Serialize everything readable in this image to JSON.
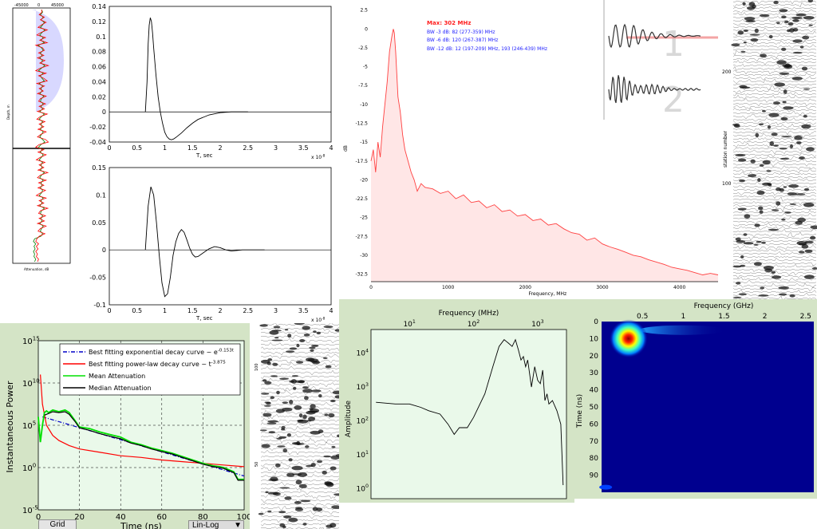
{
  "chart_data": [
    {
      "type": "line",
      "ticks": {
        "x": [
          "-45000",
          "0",
          "45000"
        ]
      },
      "xlabel": "Attenuation, dB",
      "ylabel": "Depth, m",
      "ylim": [
        0,
        100
      ],
      "series": [
        {
          "color": "#008000",
          "values": [
            50,
            52,
            48,
            53,
            49,
            55,
            52,
            48,
            56,
            51,
            47,
            53,
            49,
            55,
            44,
            50,
            53,
            48,
            51,
            47,
            52,
            49,
            56,
            50,
            45,
            53,
            48,
            51,
            55,
            46,
            52,
            49,
            51,
            47,
            54,
            50,
            48,
            53,
            49,
            52,
            47,
            55,
            50,
            46,
            52,
            49,
            51,
            48,
            53,
            50,
            47,
            52,
            56,
            49,
            45,
            51,
            48,
            53,
            50,
            46,
            52,
            49,
            51,
            48,
            55,
            50,
            47,
            53,
            49,
            51,
            48,
            52,
            50,
            46,
            53,
            49,
            51,
            47,
            55,
            50,
            48,
            52,
            49,
            51,
            47,
            53,
            50,
            48,
            52,
            49,
            38,
            36,
            40,
            37,
            39,
            36,
            38,
            37,
            40,
            38
          ]
        },
        {
          "color": "#ff0000",
          "values": [
            50,
            51,
            46,
            55,
            48,
            58,
            50,
            44,
            60,
            49,
            42,
            57,
            47,
            60,
            40,
            52,
            55,
            45,
            54,
            43,
            56,
            47,
            62,
            48,
            40,
            58,
            45,
            54,
            60,
            42,
            55,
            46,
            53,
            43,
            58,
            48,
            45,
            57,
            46,
            55,
            43,
            60,
            48,
            42,
            56,
            46,
            54,
            44,
            58,
            49,
            43,
            57,
            62,
            46,
            40,
            54,
            44,
            58,
            48,
            41,
            56,
            46,
            54,
            44,
            61,
            48,
            43,
            58,
            45,
            54,
            44,
            57,
            48,
            41,
            58,
            46,
            54,
            43,
            61,
            48,
            45,
            57,
            46,
            55,
            43,
            58,
            48,
            44,
            56,
            46,
            42,
            40,
            45,
            41,
            44,
            40,
            43,
            41,
            45,
            43
          ]
        }
      ]
    },
    {
      "type": "line",
      "ylim": [
        -0.04,
        0.14
      ],
      "yticks": [
        "-0.04",
        "-0.02",
        "0",
        "0.02",
        "0.04",
        "0.06",
        "0.08",
        "0.1",
        "0.12",
        "0.14"
      ],
      "xticks": [
        "0",
        "0.5",
        "1",
        "1.5",
        "2",
        "2.5",
        "3",
        "3.5",
        "4"
      ],
      "xlabel": "T, sec",
      "xexp": "x 10",
      "xexp_power": "-8",
      "series": [
        {
          "x": [
            0.65,
            0.68,
            0.7,
            0.72,
            0.74,
            0.76,
            0.78,
            0.8,
            0.84,
            0.88,
            0.92,
            0.96,
            1.0,
            1.04,
            1.08,
            1.12,
            1.16,
            1.2,
            1.3,
            1.4,
            1.5,
            1.6,
            1.8,
            2.0,
            2.2,
            2.4,
            2.5
          ],
          "y": [
            0,
            0.04,
            0.09,
            0.115,
            0.125,
            0.12,
            0.105,
            0.085,
            0.05,
            0.02,
            0,
            -0.015,
            -0.027,
            -0.033,
            -0.036,
            -0.037,
            -0.036,
            -0.034,
            -0.028,
            -0.021,
            -0.015,
            -0.01,
            -0.004,
            -0.001,
            0,
            0,
            0
          ]
        }
      ]
    },
    {
      "type": "line",
      "ylim": [
        -0.1,
        0.15
      ],
      "yticks": [
        "-0.1",
        "-0.05",
        "0",
        "0.05",
        "0.1",
        "0.15"
      ],
      "xticks": [
        "0",
        "0.5",
        "1",
        "1.5",
        "2",
        "2.5",
        "3",
        "3.5",
        "4"
      ],
      "xlabel": "T, sec",
      "xexp": "x 10",
      "xexp_power": "-8",
      "series": [
        {
          "x": [
            0.65,
            0.7,
            0.75,
            0.8,
            0.85,
            0.9,
            0.95,
            1.0,
            1.05,
            1.1,
            1.15,
            1.2,
            1.25,
            1.3,
            1.35,
            1.4,
            1.45,
            1.5,
            1.55,
            1.6,
            1.7,
            1.8,
            1.9,
            2.0,
            2.1,
            2.2,
            2.3,
            2.4,
            2.5,
            2.6,
            2.8
          ],
          "y": [
            0,
            0.08,
            0.115,
            0.1,
            0.05,
            -0.01,
            -0.06,
            -0.085,
            -0.08,
            -0.05,
            -0.01,
            0.015,
            0.03,
            0.037,
            0.032,
            0.018,
            0.003,
            -0.008,
            -0.013,
            -0.012,
            -0.005,
            0.002,
            0.006,
            0.004,
            0,
            -0.002,
            -0.001,
            0,
            0,
            0,
            0
          ]
        }
      ]
    },
    {
      "type": "area",
      "title": "Max: 302 MHz",
      "annotations": [
        "BW -3 dB: 82 (277-359) MHz",
        "BW -6 dB: 120 (267-387) MHz",
        "BW -12 dB: 12 (197-209) MHz, 193 (246-439) MHz"
      ],
      "xlabel": "Frequency, MHz",
      "ylabel": "dB",
      "xlim": [
        0,
        4500
      ],
      "ylim": [
        -33.5,
        3
      ],
      "yticks": [
        "2.5",
        "0",
        "-2.5",
        "-5",
        "-7.5",
        "-10",
        "-12.5",
        "-15",
        "-17.5",
        "-20",
        "-22.5",
        "-25",
        "-27.5",
        "-30",
        "-32.5"
      ],
      "xticks": [
        "0",
        "1000",
        "2000",
        "3000",
        "4000"
      ],
      "series": [
        {
          "color": "#ff4040",
          "x": [
            0,
            30,
            60,
            90,
            120,
            150,
            180,
            210,
            240,
            270,
            290,
            302,
            320,
            350,
            380,
            410,
            440,
            480,
            520,
            560,
            600,
            650,
            700,
            800,
            900,
            1000,
            1100,
            1200,
            1300,
            1400,
            1500,
            1600,
            1700,
            1800,
            1900,
            2000,
            2100,
            2200,
            2300,
            2400,
            2500,
            2600,
            2700,
            2800,
            2900,
            3000,
            3100,
            3200,
            3300,
            3400,
            3500,
            3600,
            3700,
            3800,
            3900,
            4000,
            4100,
            4200,
            4300,
            4400,
            4500
          ],
          "y": [
            -17.5,
            -16,
            -19,
            -15,
            -17,
            -13,
            -10,
            -7,
            -3,
            -1,
            0,
            -0.5,
            -3,
            -9,
            -11,
            -14,
            -16,
            -17.5,
            -19,
            -20,
            -21.5,
            -20.5,
            -21,
            -21.2,
            -21.8,
            -21.5,
            -22.5,
            -22,
            -23,
            -22.8,
            -23.7,
            -23.3,
            -24.2,
            -24,
            -24.8,
            -24.6,
            -25.4,
            -25.2,
            -26,
            -25.8,
            -26.5,
            -27,
            -27.2,
            -28,
            -27.7,
            -28.5,
            -28.9,
            -29.2,
            -29.6,
            -30,
            -30.2,
            -30.6,
            -30.9,
            -31.2,
            -31.6,
            -31.8,
            -32,
            -32.3,
            -32.6,
            -32.4,
            -32.6
          ]
        }
      ]
    },
    {
      "type": "line",
      "labels": [
        "1",
        "2"
      ]
    },
    {
      "type": "heatmap",
      "ylabel": "station number",
      "yticks": [
        "200",
        "100"
      ]
    },
    {
      "type": "line",
      "xlabel": "Time (ns)",
      "ylabel": "Instantaneous Power",
      "xlim": [
        0,
        100
      ],
      "xticks": [
        "0",
        "20",
        "40",
        "60",
        "80",
        "100"
      ],
      "ytick_base": "10",
      "ytick_powers": [
        "15",
        "10",
        "5",
        "0",
        "-5"
      ],
      "ylog": true,
      "grid": true,
      "legend": "top-right",
      "series": [
        {
          "name": "Best fitting exponential decay curve ~ e",
          "name_power": "-0.153t",
          "color": "#0000c8",
          "x": [
            2,
            100
          ],
          "y": [
            6,
            -1
          ]
        },
        {
          "name": "Best fitting power-law decay curve ~ t",
          "name_power": "-3.875",
          "color": "#ff0000",
          "x": [
            1,
            2,
            4,
            7,
            10,
            15,
            20,
            30,
            40,
            50,
            60,
            70,
            80,
            90,
            100
          ],
          "y": [
            11,
            7.5,
            5,
            3.8,
            3.2,
            2.6,
            2.2,
            1.8,
            1.4,
            1.2,
            0.9,
            0.7,
            0.5,
            0.3,
            0.1
          ]
        },
        {
          "name": "Mean Attenuation",
          "color": "#00e000",
          "x": [
            0,
            1,
            2,
            3,
            4,
            5,
            7,
            10,
            13,
            15,
            18,
            20,
            25,
            30,
            35,
            40,
            45,
            50,
            55,
            60,
            65,
            70,
            75,
            80,
            85,
            88,
            90,
            95,
            97,
            100
          ],
          "y": [
            6,
            3,
            5,
            6.5,
            6.7,
            6.5,
            6.8,
            6.6,
            6.8,
            6.5,
            5.5,
            4.8,
            4.6,
            4.2,
            3.9,
            3.6,
            3.0,
            2.7,
            2.3,
            2.0,
            1.7,
            1.3,
            0.9,
            0.5,
            0.2,
            0.1,
            0.0,
            -0.5,
            -1.4,
            -1.4
          ]
        },
        {
          "name": "Median Attenuation",
          "color": "#000000",
          "x": [
            3,
            5,
            7,
            10,
            13,
            15,
            18,
            20,
            25,
            30,
            35,
            40,
            45,
            50,
            55,
            60,
            65,
            70,
            75,
            80,
            85,
            88,
            90,
            95,
            97,
            100
          ],
          "y": [
            6.2,
            6.4,
            6.6,
            6.5,
            6.6,
            6.3,
            5.4,
            4.7,
            4.4,
            4.0,
            3.7,
            3.4,
            2.9,
            2.6,
            2.2,
            1.9,
            1.6,
            1.2,
            0.8,
            0.4,
            0.1,
            0.0,
            -0.1,
            -0.6,
            -1.5,
            -1.5
          ]
        }
      ],
      "controls": {
        "grid_button": "Grid",
        "scale_select": "Lin-Log"
      }
    },
    {
      "type": "line",
      "labels": [
        "100",
        "50"
      ]
    },
    {
      "type": "line",
      "xlabel": "Frequency (MHz)",
      "ylabel": "Amplitude",
      "xlog": true,
      "ylog": true,
      "xticks_base": "10",
      "xtick_powers": [
        "1",
        "2",
        "3"
      ],
      "ytick_powers": [
        "4",
        "3",
        "2",
        "1",
        "0"
      ],
      "series": [
        {
          "color": "#000000",
          "x": [
            3,
            6,
            10,
            15,
            20,
            30,
            40,
            50,
            60,
            80,
            100,
            150,
            200,
            250,
            300,
            350,
            400,
            450,
            500,
            550,
            600,
            650,
            700,
            800,
            900,
            1000,
            1100,
            1200,
            1300,
            1400,
            1500,
            1700,
            2000,
            2300,
            2500
          ],
          "y": [
            2.55,
            2.5,
            2.5,
            2.4,
            2.3,
            2.2,
            1.9,
            1.6,
            1.8,
            1.8,
            2.1,
            2.8,
            3.6,
            4.2,
            4.4,
            4.3,
            4.2,
            4.4,
            4.1,
            3.8,
            3.9,
            3.6,
            3.8,
            3.0,
            3.6,
            3.2,
            3.1,
            3.5,
            2.6,
            2.8,
            2.5,
            2.6,
            2.3,
            1.9,
            0.1
          ]
        }
      ]
    },
    {
      "type": "heatmap",
      "xlabel": "Frequency (GHz)",
      "ylabel": "Time (ns)",
      "xticks": [
        "0.5",
        "1",
        "1.5",
        "2",
        "2.5"
      ],
      "yticks": [
        "0",
        "10",
        "20",
        "30",
        "40",
        "50",
        "60",
        "70",
        "80",
        "90"
      ],
      "xlim": [
        0,
        2.6
      ],
      "ylim": [
        0,
        100
      ]
    }
  ]
}
